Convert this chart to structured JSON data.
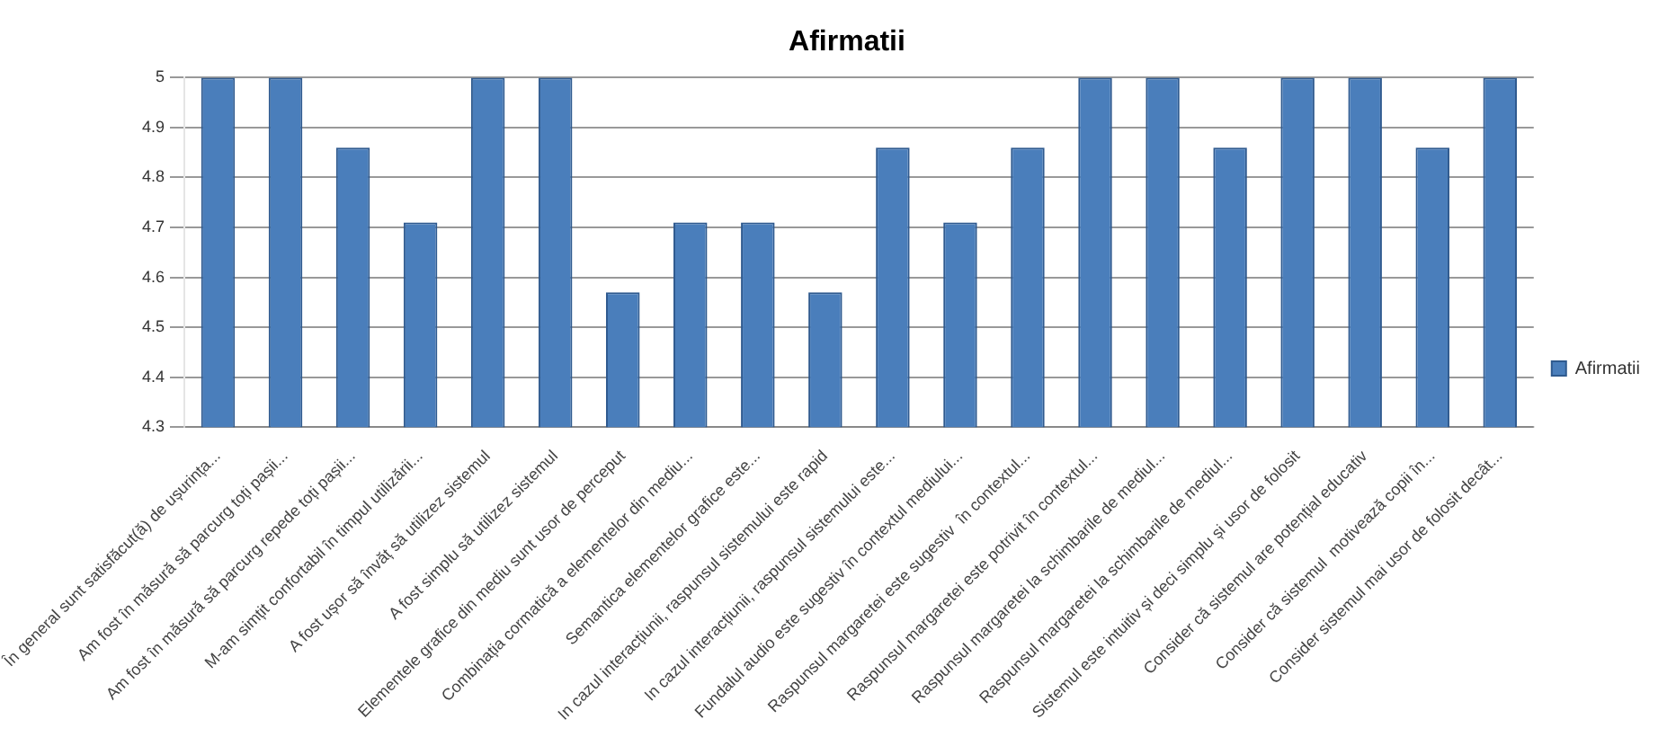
{
  "chart_data": {
    "type": "bar",
    "title": "Afirmatii",
    "categories": [
      "În general sunt satisfăcut(ă) de ușurința...",
      "Am fost în măsură să parcurg toți pașii...",
      "Am fost în măsură să parcurg repede toți pașii...",
      "M-am simțit confortabil în timpul utilizării...",
      "A fost ușor să învăț să utilizez sistemul",
      "A fost simplu să utilizez sistemul",
      "Elementele grafice din mediu sunt usor de perceput",
      "Combinația cormatică a elementelor din mediu...",
      "Semantica elementelor grafice este...",
      "In cazul interacțiunii, raspunsul sistemului este rapid",
      "In cazul interacțiunii, raspunsul sistemului este...",
      "Fundalul audio este sugestiv în contextul mediului...",
      "Raspunsul margaretei este sugestiv  în contextul...",
      "Raspunsul margaretei este potrivit în contextul...",
      "Raspunsul margaretei la schimbarile de mediul...",
      "Raspunsul margaretei la schimbarile de mediul...",
      "Sistemul este intuitiv și deci simplu și usor de folosit",
      "Consider că sistemul are potențial educativ",
      "Consider că sistemul  motivează copii în...",
      "Consider sistemul mai usor de folosit decât..."
    ],
    "series": [
      {
        "name": "Afirmatii",
        "color": "#4a7ebb",
        "values": [
          5,
          5,
          4.86,
          4.71,
          5,
          5,
          4.57,
          4.71,
          4.71,
          4.57,
          4.86,
          4.71,
          4.86,
          5,
          5,
          4.86,
          5,
          5,
          4.86,
          5
        ]
      }
    ],
    "ylim": [
      4.3,
      5
    ],
    "yticks": [
      4.3,
      4.4,
      4.5,
      4.6,
      4.7,
      4.8,
      4.9,
      5
    ],
    "grid": "y",
    "legend": "right"
  }
}
